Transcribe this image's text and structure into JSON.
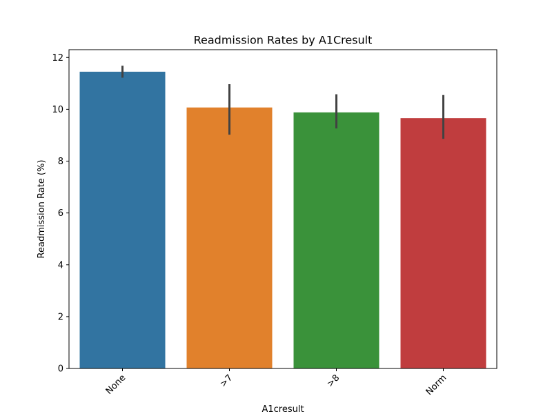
{
  "chart_data": {
    "type": "bar",
    "title": "Readmission Rates by A1Cresult",
    "xlabel": "A1cresult",
    "ylabel": "Readmission Rate (%)",
    "categories": [
      "None",
      ">7",
      ">8",
      "Norm"
    ],
    "values": [
      11.45,
      10.07,
      9.88,
      9.66
    ],
    "error_low": [
      11.22,
      9.02,
      9.26,
      8.86
    ],
    "error_high": [
      11.68,
      10.97,
      10.58,
      10.55
    ],
    "colors": [
      "#3274a1",
      "#e1812c",
      "#3a923a",
      "#c03d3e"
    ],
    "error_color": "#424242",
    "ylim": [
      0,
      12.3
    ],
    "yticks": [
      0,
      2,
      4,
      6,
      8,
      10,
      12
    ],
    "grid": false,
    "legend": "none"
  }
}
